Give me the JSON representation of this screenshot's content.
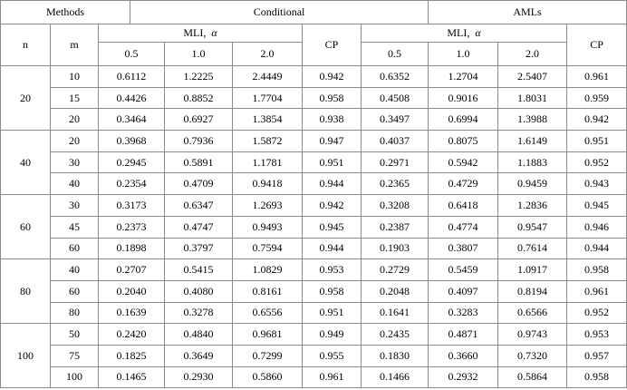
{
  "header": {
    "methods": "Methods",
    "n": "n",
    "m": "m",
    "groups": [
      {
        "name": "Conditional",
        "mli": "MLI,",
        "alpha": "α",
        "levels": [
          "0.5",
          "1.0",
          "2.0"
        ],
        "cp": "CP"
      },
      {
        "name": "AMLs",
        "mli": "MLI,",
        "alpha": "α",
        "levels": [
          "0.5",
          "1.0",
          "2.0"
        ],
        "cp": "CP"
      }
    ]
  },
  "groups": [
    {
      "n": "20",
      "rows": [
        {
          "m": "10",
          "conditional": [
            "0.6112",
            "1.2225",
            "2.4449",
            "0.942"
          ],
          "amls": [
            "0.6352",
            "1.2704",
            "2.5407",
            "0.961"
          ]
        },
        {
          "m": "15",
          "conditional": [
            "0.4426",
            "0.8852",
            "1.7704",
            "0.958"
          ],
          "amls": [
            "0.4508",
            "0.9016",
            "1.8031",
            "0.959"
          ]
        },
        {
          "m": "20",
          "conditional": [
            "0.3464",
            "0.6927",
            "1.3854",
            "0.938"
          ],
          "amls": [
            "0.3497",
            "0.6994",
            "1.3988",
            "0.942"
          ]
        }
      ]
    },
    {
      "n": "40",
      "rows": [
        {
          "m": "20",
          "conditional": [
            "0.3968",
            "0.7936",
            "1.5872",
            "0.947"
          ],
          "amls": [
            "0.4037",
            "0.8075",
            "1.6149",
            "0.951"
          ]
        },
        {
          "m": "30",
          "conditional": [
            "0.2945",
            "0.5891",
            "1.1781",
            "0.951"
          ],
          "amls": [
            "0.2971",
            "0.5942",
            "1.1883",
            "0.952"
          ]
        },
        {
          "m": "40",
          "conditional": [
            "0.2354",
            "0.4709",
            "0.9418",
            "0.944"
          ],
          "amls": [
            "0.2365",
            "0.4729",
            "0.9459",
            "0.943"
          ]
        }
      ]
    },
    {
      "n": "60",
      "rows": [
        {
          "m": "30",
          "conditional": [
            "0.3173",
            "0.6347",
            "1.2693",
            "0.942"
          ],
          "amls": [
            "0.3208",
            "0.6418",
            "1.2836",
            "0.945"
          ]
        },
        {
          "m": "45",
          "conditional": [
            "0.2373",
            "0.4747",
            "0.9493",
            "0.945"
          ],
          "amls": [
            "0.2387",
            "0.4774",
            "0.9547",
            "0.946"
          ]
        },
        {
          "m": "60",
          "conditional": [
            "0.1898",
            "0.3797",
            "0.7594",
            "0.944"
          ],
          "amls": [
            "0.1903",
            "0.3807",
            "0.7614",
            "0.944"
          ]
        }
      ]
    },
    {
      "n": "80",
      "rows": [
        {
          "m": "40",
          "conditional": [
            "0.2707",
            "0.5415",
            "1.0829",
            "0.953"
          ],
          "amls": [
            "0.2729",
            "0.5459",
            "1.0917",
            "0.958"
          ]
        },
        {
          "m": "60",
          "conditional": [
            "0.2040",
            "0.4080",
            "0.8161",
            "0.958"
          ],
          "amls": [
            "0.2048",
            "0.4097",
            "0.8194",
            "0.961"
          ]
        },
        {
          "m": "80",
          "conditional": [
            "0.1639",
            "0.3278",
            "0.6556",
            "0.951"
          ],
          "amls": [
            "0.1641",
            "0.3283",
            "0.6566",
            "0.952"
          ]
        }
      ]
    },
    {
      "n": "100",
      "rows": [
        {
          "m": "50",
          "conditional": [
            "0.2420",
            "0.4840",
            "0.9681",
            "0.949"
          ],
          "amls": [
            "0.2435",
            "0.4871",
            "0.9743",
            "0.953"
          ]
        },
        {
          "m": "75",
          "conditional": [
            "0.1825",
            "0.3649",
            "0.7299",
            "0.955"
          ],
          "amls": [
            "0.1830",
            "0.3660",
            "0.7320",
            "0.957"
          ]
        },
        {
          "m": "100",
          "conditional": [
            "0.1465",
            "0.2930",
            "0.5860",
            "0.961"
          ],
          "amls": [
            "0.1466",
            "0.2932",
            "0.5864",
            "0.958"
          ]
        }
      ]
    }
  ]
}
